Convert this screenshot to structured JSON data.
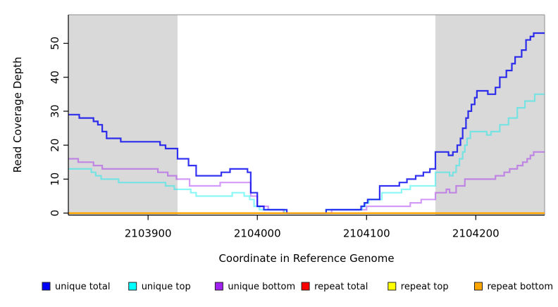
{
  "chart_data": {
    "type": "line",
    "subtype": "step",
    "title": "",
    "xlabel": "Coordinate in Reference Genome",
    "ylabel": "Read Coverage Depth",
    "xlim": [
      2103827,
      2104263
    ],
    "ylim": [
      -0.6,
      58.4
    ],
    "x_ticks": [
      2103900,
      2104000,
      2104100,
      2104200
    ],
    "y_ticks": [
      0,
      10,
      20,
      30,
      40,
      50
    ],
    "grid": false,
    "legend_position": "bottom",
    "plot_background": "#FFFFFF",
    "shaded_region_color": "#D9D9D9",
    "frame_color": "#A0A0A0",
    "axis_color": "#000000",
    "shaded_regions": [
      {
        "x0": 2103827,
        "x1": 2103927
      },
      {
        "x0": 2104163,
        "x1": 2104263
      }
    ],
    "series": [
      {
        "name": "unique total",
        "swatch_color": "#0000FF",
        "line_color": "rgba(0,0,238,0.8)",
        "points": [
          [
            2103827,
            29
          ],
          [
            2103837,
            28
          ],
          [
            2103850,
            27
          ],
          [
            2103854,
            26
          ],
          [
            2103858,
            24
          ],
          [
            2103862,
            22
          ],
          [
            2103875,
            21
          ],
          [
            2103911,
            20
          ],
          [
            2103916,
            19
          ],
          [
            2103927,
            16
          ],
          [
            2103937,
            14
          ],
          [
            2103944,
            11
          ],
          [
            2103967,
            12
          ],
          [
            2103975,
            13
          ],
          [
            2103991,
            12
          ],
          [
            2103994,
            6
          ],
          [
            2104000,
            2
          ],
          [
            2104006,
            1
          ],
          [
            2104027,
            0
          ],
          [
            2104063,
            1
          ],
          [
            2104095,
            2
          ],
          [
            2104098,
            3
          ],
          [
            2104101,
            4
          ],
          [
            2104112,
            8
          ],
          [
            2104130,
            9
          ],
          [
            2104137,
            10
          ],
          [
            2104145,
            11
          ],
          [
            2104152,
            12
          ],
          [
            2104158,
            13
          ],
          [
            2104163,
            18
          ],
          [
            2104175,
            17
          ],
          [
            2104179,
            18
          ],
          [
            2104183,
            20
          ],
          [
            2104186,
            22
          ],
          [
            2104188,
            25
          ],
          [
            2104191,
            28
          ],
          [
            2104193,
            30
          ],
          [
            2104196,
            32
          ],
          [
            2104199,
            34
          ],
          [
            2104201,
            36
          ],
          [
            2104211,
            35
          ],
          [
            2104218,
            37
          ],
          [
            2104222,
            40
          ],
          [
            2104228,
            42
          ],
          [
            2104233,
            44
          ],
          [
            2104236,
            46
          ],
          [
            2104242,
            48
          ],
          [
            2104246,
            51
          ],
          [
            2104250,
            52
          ],
          [
            2104253,
            53
          ],
          [
            2104263,
            53
          ]
        ]
      },
      {
        "name": "unique top",
        "swatch_color": "#00FFFF",
        "line_color": "rgba(0,238,238,0.45)",
        "points": [
          [
            2103827,
            13
          ],
          [
            2103848,
            12
          ],
          [
            2103852,
            11
          ],
          [
            2103857,
            10
          ],
          [
            2103873,
            9
          ],
          [
            2103916,
            8
          ],
          [
            2103924,
            7
          ],
          [
            2103939,
            6
          ],
          [
            2103944,
            5
          ],
          [
            2103977,
            6
          ],
          [
            2103988,
            5
          ],
          [
            2103993,
            4
          ],
          [
            2103997,
            2
          ],
          [
            2104002,
            1
          ],
          [
            2104025,
            0
          ],
          [
            2104063,
            1
          ],
          [
            2104096,
            2
          ],
          [
            2104099,
            3
          ],
          [
            2104102,
            4
          ],
          [
            2104114,
            6
          ],
          [
            2104132,
            7
          ],
          [
            2104140,
            8
          ],
          [
            2104163,
            12
          ],
          [
            2104176,
            11
          ],
          [
            2104179,
            12
          ],
          [
            2104182,
            14
          ],
          [
            2104185,
            16
          ],
          [
            2104188,
            18
          ],
          [
            2104190,
            20
          ],
          [
            2104192,
            22
          ],
          [
            2104195,
            24
          ],
          [
            2104210,
            23
          ],
          [
            2104214,
            24
          ],
          [
            2104222,
            26
          ],
          [
            2104230,
            28
          ],
          [
            2104238,
            31
          ],
          [
            2104245,
            33
          ],
          [
            2104254,
            35
          ],
          [
            2104263,
            35
          ]
        ]
      },
      {
        "name": "unique bottom",
        "swatch_color": "#A020F0",
        "line_color": "rgba(160,32,240,0.45)",
        "points": [
          [
            2103827,
            16
          ],
          [
            2103836,
            15
          ],
          [
            2103850,
            14
          ],
          [
            2103858,
            13
          ],
          [
            2103909,
            12
          ],
          [
            2103918,
            11
          ],
          [
            2103926,
            10
          ],
          [
            2103938,
            8
          ],
          [
            2103966,
            9
          ],
          [
            2103994,
            5
          ],
          [
            2104000,
            2
          ],
          [
            2104010,
            1
          ],
          [
            2104024,
            0
          ],
          [
            2104068,
            1
          ],
          [
            2104100,
            2
          ],
          [
            2104140,
            3
          ],
          [
            2104150,
            4
          ],
          [
            2104163,
            6
          ],
          [
            2104173,
            7
          ],
          [
            2104176,
            6
          ],
          [
            2104182,
            8
          ],
          [
            2104190,
            10
          ],
          [
            2104218,
            11
          ],
          [
            2104226,
            12
          ],
          [
            2104231,
            13
          ],
          [
            2104238,
            14
          ],
          [
            2104243,
            15
          ],
          [
            2104247,
            16
          ],
          [
            2104250,
            17
          ],
          [
            2104253,
            18
          ],
          [
            2104263,
            18
          ]
        ]
      },
      {
        "name": "repeat total",
        "swatch_color": "#FF0000",
        "line_color": "rgba(222,0,0,0.8)",
        "points": [
          [
            2103827,
            0
          ],
          [
            2104263,
            0
          ]
        ]
      },
      {
        "name": "repeat top",
        "swatch_color": "#FFFF00",
        "line_color": "rgba(255,255,0,0.8)",
        "points": [
          [
            2103827,
            0
          ],
          [
            2104263,
            0
          ]
        ]
      },
      {
        "name": "repeat bottom",
        "swatch_color": "#FFA500",
        "line_color": "#FFA500",
        "points": [
          [
            2103827,
            0
          ],
          [
            2104263,
            0
          ]
        ]
      }
    ]
  }
}
